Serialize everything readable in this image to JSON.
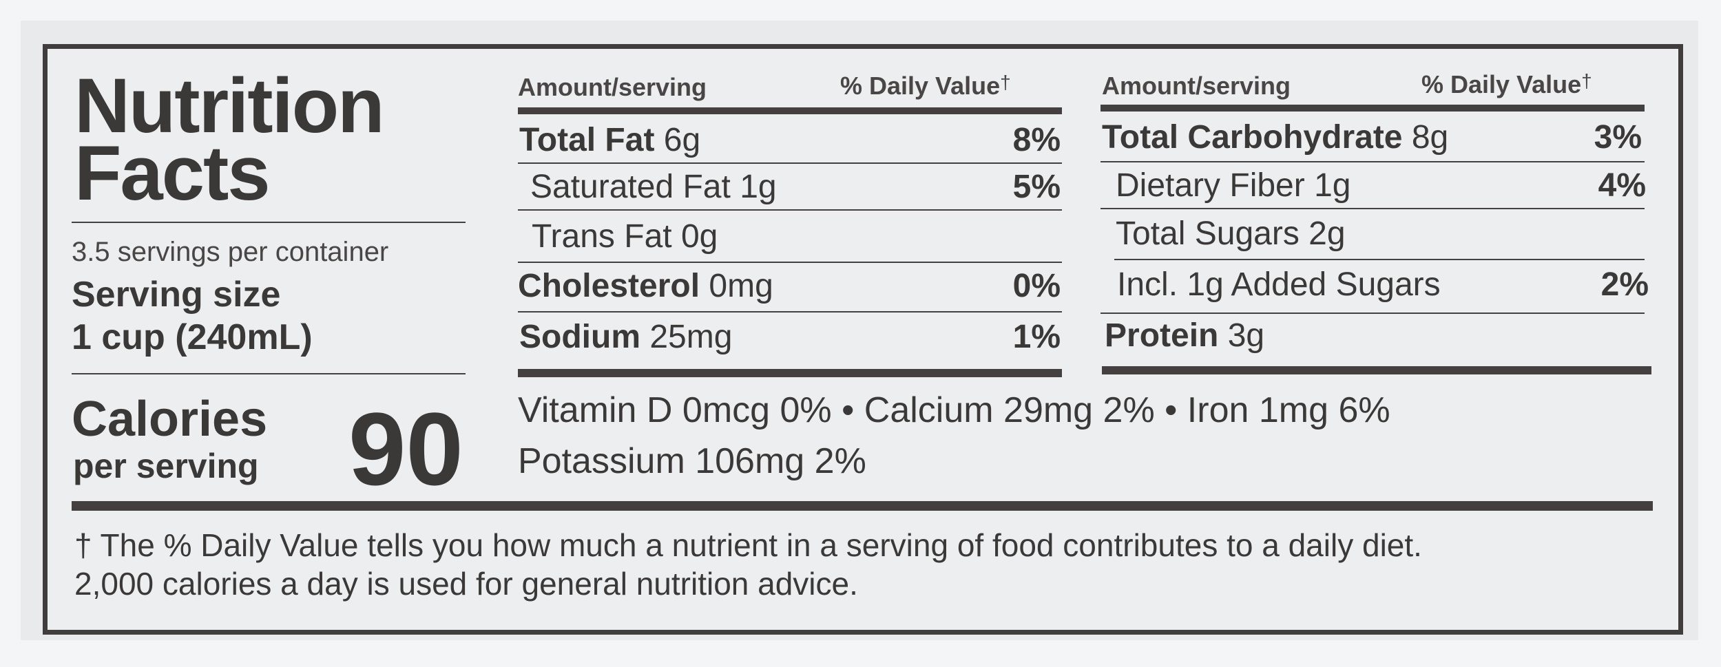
{
  "title_line1": "Nutrition",
  "title_line2": "Facts",
  "servings_per_container": "3.5 servings per container",
  "serving_size_label": "Serving size",
  "serving_size_value": "1 cup (240mL)",
  "calories": {
    "label": "Calories",
    "sublabel": "per serving",
    "value": "90"
  },
  "left_table": {
    "header_amount": "Amount/serving",
    "header_dv": "% Daily Value",
    "dagger": "†",
    "rows": [
      {
        "label": "Total Fat",
        "amount": "6g",
        "dv": "8%"
      },
      {
        "label": "Saturated Fat",
        "amount": "1g",
        "dv": "5%"
      },
      {
        "label": "Trans Fat",
        "amount": "0g",
        "dv": ""
      },
      {
        "label": "Cholesterol",
        "amount": "0mg",
        "dv": "0%"
      },
      {
        "label": "Sodium",
        "amount": "25mg",
        "dv": "1%"
      }
    ]
  },
  "right_table": {
    "header_amount": "Amount/serving",
    "header_dv": "% Daily Value",
    "dagger": "†",
    "rows": [
      {
        "label": "Total Carbohydrate",
        "amount": "8g",
        "dv": "3%"
      },
      {
        "label": "Dietary Fiber",
        "amount": "1g",
        "dv": "4%"
      },
      {
        "label": "Total Sugars",
        "amount": "2g",
        "dv": ""
      },
      {
        "label": "Incl. 1g Added Sugars",
        "amount": "",
        "dv": "2%"
      },
      {
        "label": "Protein",
        "amount": "3g",
        "dv": ""
      }
    ]
  },
  "vitamins_line1": "Vitamin D 0mcg 0% • Calcium 29mg 2% • Iron 1mg 6%",
  "vitamins_line2": "Potassium 106mg 2%",
  "footnote_line1": "† The % Daily Value tells you how much a nutrient in a serving of food contributes to a daily diet.",
  "footnote_line2": "2,000 calories a day is used for general nutrition advice."
}
